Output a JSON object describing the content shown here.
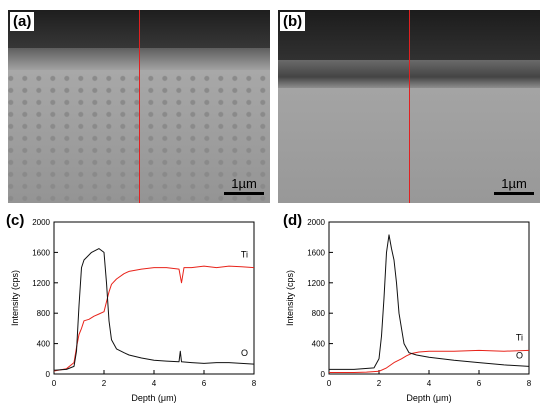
{
  "figure": {
    "panels": [
      {
        "label": "(a)",
        "scale_bar": "1µm"
      },
      {
        "label": "(b)",
        "scale_bar": "1µm"
      }
    ]
  },
  "chart_data": [
    {
      "label": "(c)",
      "type": "line",
      "xlabel": "Depth (μm)",
      "ylabel": "Intensity (cps)",
      "xlim": [
        0,
        8
      ],
      "ylim": [
        0,
        2000
      ],
      "xticks": [
        0,
        2,
        4,
        6,
        8
      ],
      "yticks": [
        0,
        400,
        800,
        1200,
        1600,
        2000
      ],
      "grid": false,
      "series": [
        {
          "name": "Ti",
          "color": "#e8231a",
          "x": [
            0,
            0.5,
            0.8,
            0.9,
            1.0,
            1.1,
            1.2,
            1.4,
            1.6,
            1.8,
            2.0,
            2.1,
            2.2,
            2.3,
            2.5,
            2.8,
            3.0,
            3.5,
            4.0,
            4.5,
            5.0,
            5.1,
            5.2,
            5.5,
            6.0,
            6.5,
            7.0,
            7.5,
            8.0
          ],
          "y": [
            40,
            70,
            150,
            350,
            520,
            600,
            700,
            720,
            760,
            790,
            820,
            950,
            1080,
            1180,
            1250,
            1320,
            1350,
            1380,
            1400,
            1400,
            1380,
            1200,
            1400,
            1400,
            1420,
            1400,
            1420,
            1410,
            1400
          ]
        },
        {
          "name": "O",
          "color": "#111111",
          "x": [
            0,
            0.5,
            0.8,
            0.9,
            1.0,
            1.1,
            1.2,
            1.5,
            1.8,
            2.0,
            2.1,
            2.2,
            2.3,
            2.5,
            2.8,
            3.0,
            3.5,
            4.0,
            4.5,
            5.0,
            5.05,
            5.1,
            5.5,
            6.0,
            6.5,
            7.0,
            7.5,
            8.0
          ],
          "y": [
            50,
            60,
            100,
            300,
            900,
            1400,
            1500,
            1600,
            1650,
            1600,
            1200,
            700,
            450,
            330,
            280,
            250,
            210,
            180,
            170,
            160,
            300,
            160,
            150,
            140,
            150,
            150,
            140,
            130
          ]
        }
      ]
    },
    {
      "label": "(d)",
      "type": "line",
      "xlabel": "Depth (μm)",
      "ylabel": "Intensity (cps)",
      "xlim": [
        0,
        8
      ],
      "ylim": [
        0,
        2000
      ],
      "xticks": [
        0,
        2,
        4,
        6,
        8
      ],
      "yticks": [
        0,
        400,
        800,
        1200,
        1600,
        2000
      ],
      "grid": false,
      "series": [
        {
          "name": "Ti",
          "color": "#e8231a",
          "x": [
            0,
            1.0,
            1.5,
            2.0,
            2.3,
            2.6,
            2.9,
            3.1,
            3.3,
            3.6,
            4.0,
            5.0,
            6.0,
            7.0,
            8.0
          ],
          "y": [
            20,
            20,
            25,
            35,
            80,
            150,
            200,
            240,
            270,
            290,
            300,
            300,
            310,
            300,
            310
          ]
        },
        {
          "name": "O",
          "color": "#111111",
          "x": [
            0,
            1.0,
            1.8,
            2.0,
            2.1,
            2.2,
            2.3,
            2.4,
            2.5,
            2.6,
            2.7,
            2.8,
            2.9,
            3.0,
            3.2,
            3.5,
            4.0,
            5.0,
            6.0,
            7.0,
            8.0
          ],
          "y": [
            60,
            60,
            80,
            200,
            500,
            1000,
            1600,
            1830,
            1650,
            1500,
            1200,
            800,
            600,
            400,
            280,
            250,
            220,
            180,
            150,
            120,
            100
          ]
        }
      ]
    }
  ]
}
